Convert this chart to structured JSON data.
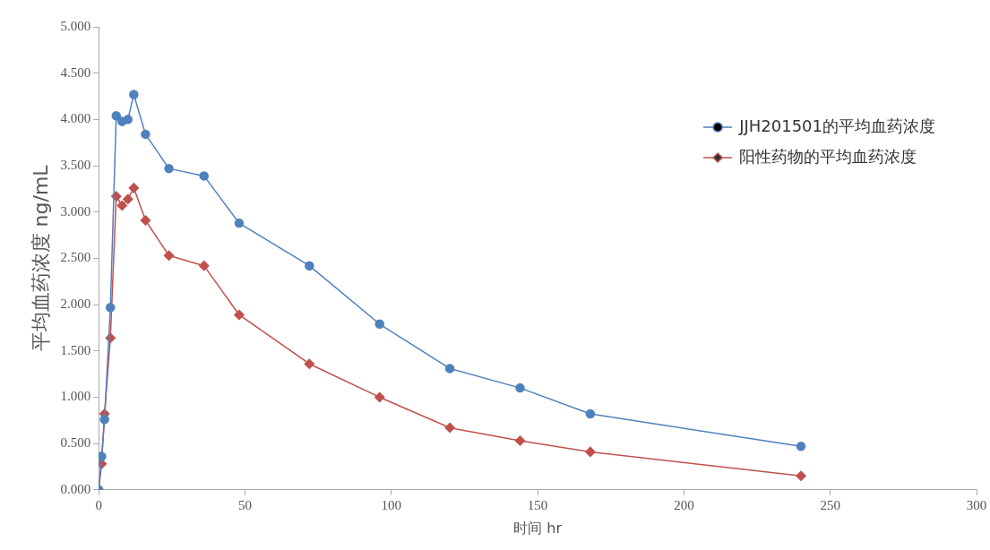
{
  "chart_data": {
    "type": "line",
    "xlabel": "时间 hr",
    "ylabel": "平均血药浓度 ng/mL",
    "xlim": [
      0,
      300
    ],
    "xticks": [
      0,
      50,
      100,
      150,
      200,
      250,
      300
    ],
    "ylim": [
      0,
      5
    ],
    "yticks": [
      {
        "value": 0,
        "label": "0.000"
      },
      {
        "value": 0.5,
        "label": "0.500"
      },
      {
        "value": 1,
        "label": "1.000"
      },
      {
        "value": 1.5,
        "label": "1.500"
      },
      {
        "value": 2,
        "label": "2.000"
      },
      {
        "value": 2.5,
        "label": "2.500"
      },
      {
        "value": 3,
        "label": "3.000"
      },
      {
        "value": 3.5,
        "label": "3.500"
      },
      {
        "value": 4,
        "label": "4.000"
      },
      {
        "value": 4.5,
        "label": "4.500"
      },
      {
        "value": 5,
        "label": "5.000"
      }
    ],
    "x": [
      0,
      1,
      2,
      4,
      6,
      8,
      10,
      12,
      16,
      24,
      36,
      48,
      72,
      96,
      120,
      144,
      168,
      240
    ],
    "grid": false,
    "legend": "top right",
    "line_style": "solid",
    "series": [
      {
        "name": "JJH201501的平均血药浓度",
        "color": "#4f81bd",
        "marker": "circle",
        "values": [
          0,
          0.36,
          0.76,
          1.97,
          4.04,
          3.98,
          4.0,
          4.27,
          3.84,
          3.47,
          3.39,
          2.88,
          2.42,
          1.79,
          1.31,
          1.1,
          0.82,
          0.47
        ]
      },
      {
        "name": "阳性药物的平均血药浓度",
        "color": "#c0504d",
        "marker": "diamond",
        "values": [
          0,
          0.28,
          0.82,
          1.64,
          3.17,
          3.07,
          3.14,
          3.26,
          2.91,
          2.53,
          2.42,
          1.89,
          1.36,
          1.0,
          0.67,
          0.53,
          0.41,
          0.15
        ]
      }
    ]
  }
}
